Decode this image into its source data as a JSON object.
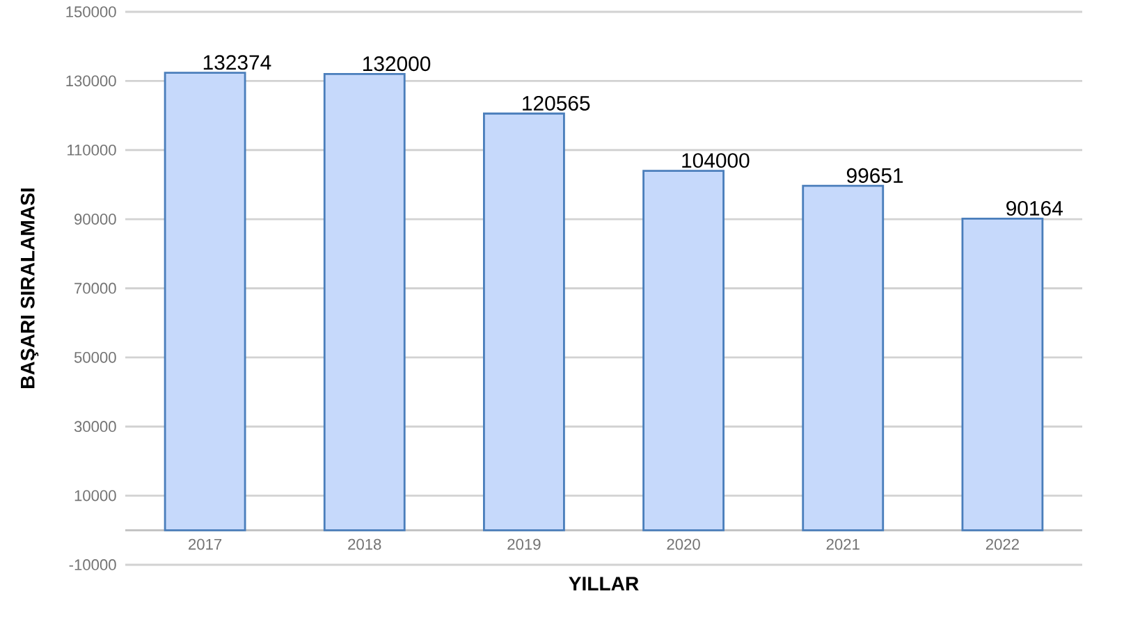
{
  "chart_data": {
    "type": "bar",
    "xlabel": "YILLAR",
    "ylabel": "BAŞARI SIRALAMASI",
    "categories": [
      "2017",
      "2018",
      "2019",
      "2020",
      "2021",
      "2022"
    ],
    "values": [
      132374,
      132000,
      120565,
      104000,
      99651,
      90164
    ],
    "color": "#c6d9fb",
    "ylim": [
      -10000,
      150000
    ],
    "yticks": [
      -10000,
      10000,
      30000,
      50000,
      70000,
      90000,
      110000,
      130000,
      150000
    ],
    "grid": "y",
    "data_labels": true
  }
}
